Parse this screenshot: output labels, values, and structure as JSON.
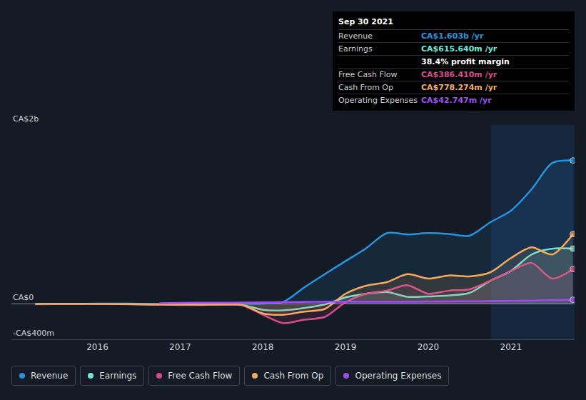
{
  "chart_data": {
    "type": "line",
    "x": [
      2015.25,
      2015.5,
      2015.75,
      2016,
      2016.25,
      2016.5,
      2016.75,
      2017,
      2017.25,
      2017.5,
      2017.75,
      2018,
      2018.25,
      2018.5,
      2018.75,
      2019,
      2019.25,
      2019.5,
      2019.75,
      2020,
      2020.25,
      2020.5,
      2020.75,
      2021,
      2021.25,
      2021.5,
      2021.75
    ],
    "series": [
      {
        "name": "Revenue",
        "color": "#2394df",
        "values": [
          -8,
          -5,
          -3,
          0,
          0,
          -2,
          -3,
          -5,
          -6,
          -5,
          -3,
          0,
          20,
          180,
          330,
          475,
          620,
          790,
          775,
          790,
          780,
          760,
          910,
          1040,
          1280,
          1575,
          1603
        ]
      },
      {
        "name": "Earnings",
        "color": "#71e7d6",
        "values": [
          -5,
          -4,
          -3,
          -2,
          -3,
          -6,
          -8,
          -10,
          -12,
          -10,
          -15,
          -70,
          -75,
          -50,
          -10,
          70,
          110,
          130,
          75,
          80,
          90,
          120,
          255,
          365,
          550,
          615,
          615.64
        ]
      },
      {
        "name": "Free Cash Flow",
        "color": "#d84a8e",
        "values": [
          -5,
          -4,
          -3,
          -4,
          -6,
          -10,
          -14,
          -15,
          -15,
          -12,
          -20,
          -125,
          -220,
          -180,
          -150,
          15,
          110,
          145,
          205,
          110,
          145,
          160,
          255,
          365,
          455,
          280,
          386.41
        ]
      },
      {
        "name": "Cash From Op",
        "color": "#f5ab5e",
        "values": [
          -3,
          -2,
          -2,
          -3,
          -5,
          -8,
          -10,
          -12,
          -12,
          -10,
          -15,
          -110,
          -125,
          -90,
          -60,
          110,
          200,
          240,
          330,
          280,
          315,
          305,
          350,
          510,
          630,
          550,
          778.27
        ]
      },
      {
        "name": "Operating Expenses",
        "color": "#9d4ef1",
        "values": [
          null,
          null,
          null,
          null,
          null,
          null,
          5,
          8,
          10,
          10,
          12,
          14,
          16,
          18,
          20,
          22,
          22,
          22,
          22,
          24,
          25,
          26,
          28,
          30,
          33,
          38,
          42.747
        ]
      }
    ],
    "xlim": [
      2014.96,
      2021.77
    ],
    "xticks": [
      2016,
      2017,
      2018,
      2019,
      2020,
      2021
    ],
    "ylim": [
      -400,
      2000
    ],
    "yticks": [
      {
        "value": -400,
        "label": "-CA$400m"
      },
      {
        "value": 0,
        "label": "CA$0"
      },
      {
        "value": 2000,
        "label": "CA$2b"
      }
    ],
    "grid": true,
    "legend": "bottom",
    "marker": "circle",
    "shaded_x": [
      2020.76,
      2021.77
    ],
    "tooltip": {
      "date": "Sep 30 2021",
      "rows": [
        {
          "label": "Revenue",
          "value": "CA$1.603b /yr"
        },
        {
          "label": "Earnings",
          "value": "CA$615.640m /yr"
        },
        {
          "value": "38.4% profit margin"
        },
        {
          "label": "Free Cash Flow",
          "value": "CA$386.410m /yr"
        },
        {
          "label": "Cash From Op",
          "value": "CA$778.274m /yr"
        },
        {
          "label": "Operating Expenses",
          "value": "CA$42.747m /yr"
        }
      ]
    }
  }
}
